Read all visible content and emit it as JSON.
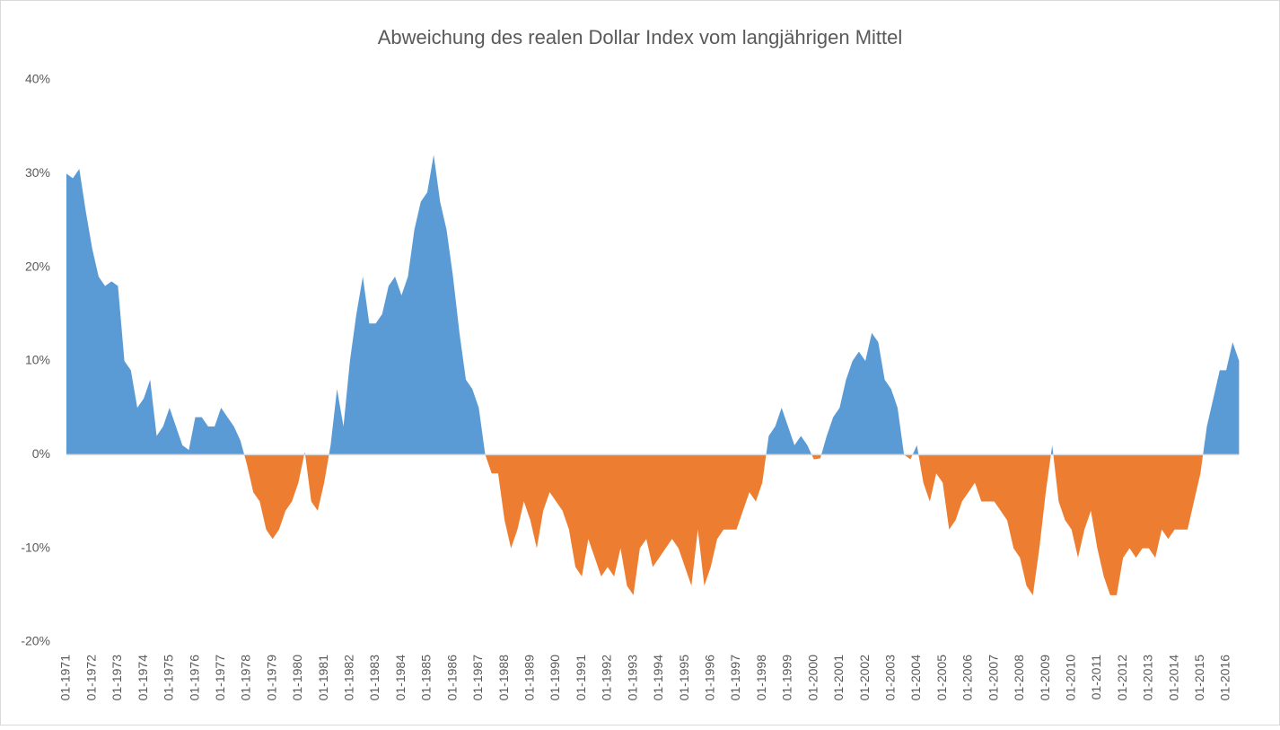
{
  "chart_data": {
    "type": "area",
    "title": "Abweichung des realen Dollar Index vom langjährigen Mittel",
    "categories": [
      "01-1971",
      null,
      null,
      null,
      "01-1972",
      null,
      null,
      null,
      "01-1973",
      null,
      null,
      null,
      "01-1974",
      null,
      null,
      null,
      "01-1975",
      null,
      null,
      null,
      "01-1976",
      null,
      null,
      null,
      "01-1977",
      null,
      null,
      null,
      "01-1978",
      null,
      null,
      null,
      "01-1979",
      null,
      null,
      null,
      "01-1980",
      null,
      null,
      null,
      "01-1981",
      null,
      null,
      null,
      "01-1982",
      null,
      null,
      null,
      "01-1983",
      null,
      null,
      null,
      "01-1984",
      null,
      null,
      null,
      "01-1985",
      null,
      null,
      null,
      "01-1986",
      null,
      null,
      null,
      "01-1987",
      null,
      null,
      null,
      "01-1988",
      null,
      null,
      null,
      "01-1989",
      null,
      null,
      null,
      "01-1990",
      null,
      null,
      null,
      "01-1991",
      null,
      null,
      null,
      "01-1992",
      null,
      null,
      null,
      "01-1993",
      null,
      null,
      null,
      "01-1994",
      null,
      null,
      null,
      "01-1995",
      null,
      null,
      null,
      "01-1996",
      null,
      null,
      null,
      "01-1997",
      null,
      null,
      null,
      "01-1998",
      null,
      null,
      null,
      "01-1999",
      null,
      null,
      null,
      "01-2000",
      null,
      null,
      null,
      "01-2001",
      null,
      null,
      null,
      "01-2002",
      null,
      null,
      null,
      "01-2003",
      null,
      null,
      null,
      "01-2004",
      null,
      null,
      null,
      "01-2005",
      null,
      null,
      null,
      "01-2006",
      null,
      null,
      null,
      "01-2007",
      null,
      null,
      null,
      "01-2008",
      null,
      null,
      null,
      "01-2009",
      null,
      null,
      null,
      "01-2010",
      null,
      null,
      null,
      "01-2011",
      null,
      null,
      null,
      "01-2012",
      null,
      null,
      null,
      "01-2013",
      null,
      null,
      null,
      "01-2014",
      null,
      null,
      null,
      "01-2015",
      null,
      null,
      null,
      "01-2016",
      null,
      null
    ],
    "values": [
      30,
      29.5,
      30.5,
      26,
      22,
      19,
      18,
      18.5,
      18,
      10,
      9,
      5,
      6,
      8,
      2,
      3,
      5,
      3,
      1,
      0.5,
      4,
      4,
      3,
      3,
      5,
      4,
      3,
      1.5,
      -1,
      -4,
      -5,
      -8,
      -9,
      -8,
      -6,
      -5,
      -3,
      0.3,
      -5,
      -6,
      -3,
      1,
      7,
      3,
      10,
      15,
      19,
      14,
      14,
      15,
      18,
      19,
      17,
      19,
      24,
      27,
      28,
      32,
      27,
      24,
      19,
      13,
      8,
      7,
      5,
      0,
      -2,
      -2,
      -7,
      -10,
      -8,
      -5,
      -7,
      -10,
      -6,
      -4,
      -5,
      -6,
      -8,
      -12,
      -13,
      -9,
      -11,
      -13,
      -12,
      -13,
      -10,
      -14,
      -15,
      -10,
      -9,
      -12,
      -11,
      -10,
      -9,
      -10,
      -12,
      -14,
      -8,
      -14,
      -12,
      -9,
      -8,
      -8,
      -8,
      -6,
      -4,
      -5,
      -3,
      2,
      3,
      5,
      3,
      1,
      2,
      1,
      -0.5,
      -0.4,
      2,
      4,
      5,
      8,
      10,
      11,
      10,
      13,
      12,
      8,
      7,
      5,
      0,
      -0.5,
      1,
      -3,
      -5,
      -2,
      -3,
      -8,
      -7,
      -5,
      -4,
      -3,
      -5,
      -5,
      -5,
      -6,
      -7,
      -10,
      -11,
      -14,
      -15,
      -10,
      -4,
      1,
      -5,
      -7,
      -8,
      -11,
      -8,
      -6,
      -10,
      -13,
      -15,
      -15,
      -11,
      -10,
      -11,
      -10,
      -10,
      -11,
      -8,
      -9,
      -8,
      -8,
      -8,
      -5,
      -2,
      3,
      6,
      9,
      9,
      12,
      10
    ],
    "positive_color": "#5b9bd5",
    "negative_color": "#ed7d31",
    "ylim": [
      -20,
      40
    ],
    "yticks": [
      {
        "value": -20,
        "label": "-20%"
      },
      {
        "value": -10,
        "label": "-10%"
      },
      {
        "value": 0,
        "label": "0%"
      },
      {
        "value": 10,
        "label": "10%"
      },
      {
        "value": 20,
        "label": "20%"
      },
      {
        "value": 30,
        "label": "30%"
      },
      {
        "value": 40,
        "label": "40%"
      }
    ]
  }
}
